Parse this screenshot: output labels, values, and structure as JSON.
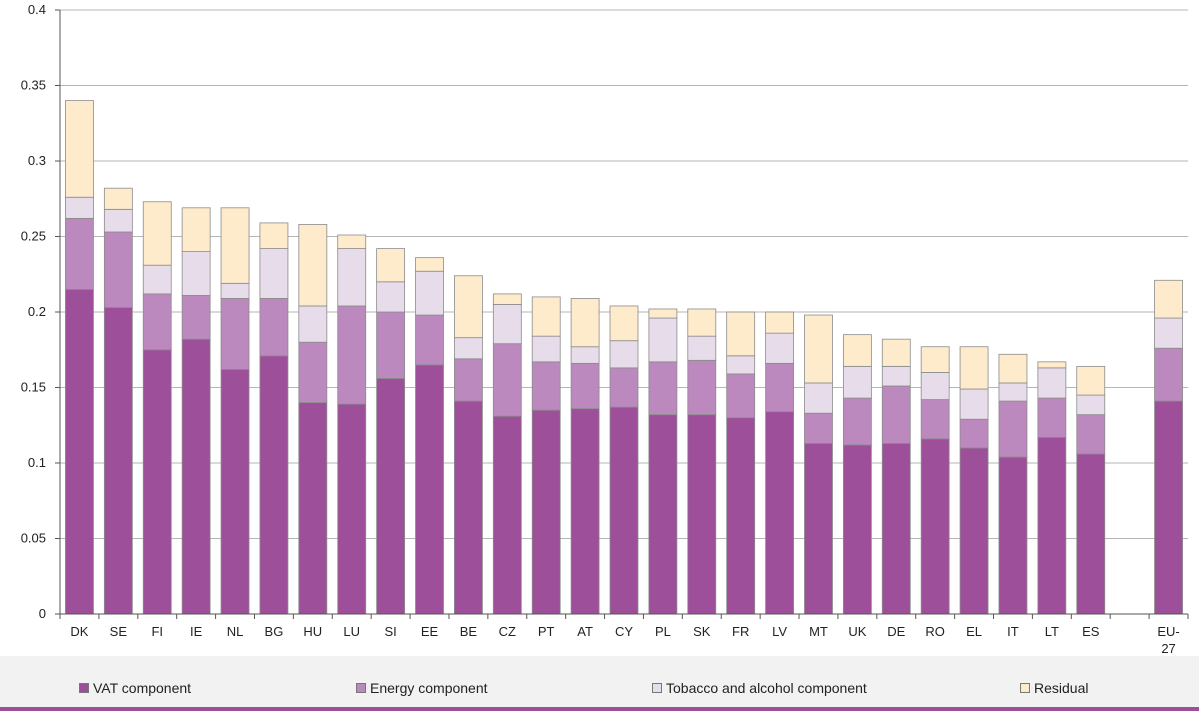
{
  "chart_data": {
    "type": "bar",
    "stacked": true,
    "ylim": [
      0,
      0.4
    ],
    "yticks": [
      "0",
      "0.05",
      "0.1",
      "0.15",
      "0.2",
      "0.25",
      "0.3",
      "0.35",
      "0.4"
    ],
    "categories": [
      "DK",
      "SE",
      "FI",
      "IE",
      "NL",
      "BG",
      "HU",
      "LU",
      "SI",
      "EE",
      "BE",
      "CZ",
      "PT",
      "AT",
      "CY",
      "PL",
      "SK",
      "FR",
      "LV",
      "MT",
      "UK",
      "DE",
      "RO",
      "EL",
      "IT",
      "LT",
      "ES",
      "",
      "EU-27"
    ],
    "grid": true,
    "legend_position": "bottom",
    "series": [
      {
        "name": "VAT component",
        "color": "#9e4f9a",
        "values": [
          0.215,
          0.203,
          0.175,
          0.182,
          0.162,
          0.171,
          0.14,
          0.139,
          0.156,
          0.165,
          0.141,
          0.131,
          0.135,
          0.136,
          0.137,
          0.132,
          0.132,
          0.13,
          0.134,
          0.113,
          0.112,
          0.113,
          0.116,
          0.11,
          0.104,
          0.117,
          0.106,
          null,
          0.141
        ]
      },
      {
        "name": "Energy component",
        "color": "#bb89bd",
        "values": [
          0.047,
          0.05,
          0.037,
          0.029,
          0.047,
          0.038,
          0.04,
          0.065,
          0.044,
          0.033,
          0.028,
          0.048,
          0.032,
          0.03,
          0.026,
          0.035,
          0.036,
          0.029,
          0.032,
          0.02,
          0.031,
          0.038,
          0.026,
          0.019,
          0.037,
          0.026,
          0.026,
          null,
          0.035
        ]
      },
      {
        "name": "Tobacco and alcohol component",
        "color": "#e7dcea",
        "values": [
          0.014,
          0.015,
          0.019,
          0.029,
          0.01,
          0.033,
          0.024,
          0.038,
          0.02,
          0.029,
          0.014,
          0.026,
          0.017,
          0.011,
          0.018,
          0.029,
          0.016,
          0.012,
          0.02,
          0.02,
          0.021,
          0.013,
          0.018,
          0.02,
          0.012,
          0.02,
          0.013,
          null,
          0.02
        ]
      },
      {
        "name": "Residual",
        "color": "#fdebcc",
        "values": [
          0.064,
          0.014,
          0.042,
          0.029,
          0.05,
          0.017,
          0.054,
          0.009,
          0.022,
          0.009,
          0.041,
          0.007,
          0.026,
          0.032,
          0.023,
          0.006,
          0.018,
          0.029,
          0.014,
          0.045,
          0.021,
          0.018,
          0.017,
          0.028,
          0.019,
          0.004,
          0.019,
          null,
          0.025
        ]
      }
    ]
  }
}
